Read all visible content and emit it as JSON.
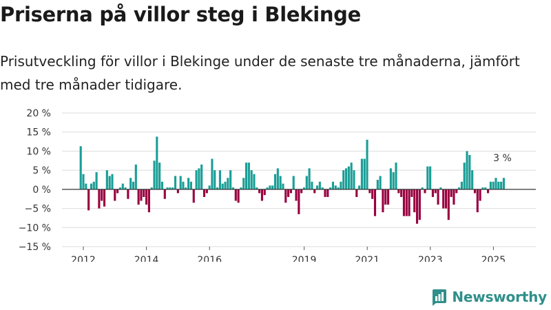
{
  "title": "Priserna på villor steg i Blekinge",
  "subtitle": "Prisutveckling för villor i Blekinge under de senaste tre månaderna, jämfört med tre månader tidigare.",
  "brand": "Newsworthy",
  "colors": {
    "positive": "#1a9e96",
    "negative": "#990040",
    "brand": "#2f8f8a"
  },
  "chart_data": {
    "type": "bar",
    "ylabel": "",
    "xlabel": "",
    "ylim": [
      -15,
      20
    ],
    "y_ticks": [
      20,
      15,
      10,
      5,
      0,
      -5,
      -10,
      -15
    ],
    "y_tick_labels": [
      "20 %",
      "15 %",
      "10 %",
      "5 %",
      "0 %",
      "−5 %",
      "−10 %",
      "−15 %"
    ],
    "x_start_year": 2011.917,
    "x_step": 0.0833,
    "x_ticks": [
      2012,
      2014,
      2016,
      2019,
      2021,
      2023,
      2025
    ],
    "x_tick_labels": [
      "2012",
      "2014",
      "2016",
      "2019",
      "2021",
      "2023",
      "2025"
    ],
    "last_value_label": "3 %",
    "values": [
      11.3,
      4,
      1.5,
      -5.5,
      1.5,
      2,
      4.5,
      -5,
      -3,
      -4.5,
      5,
      3.5,
      4,
      -3,
      -1,
      0.5,
      1.5,
      0.5,
      -2.5,
      3,
      2,
      6.5,
      -4,
      -3,
      -2,
      -4,
      -6,
      0.5,
      7.5,
      13.8,
      7,
      2,
      -2.5,
      0.5,
      0.5,
      0.5,
      3.5,
      -1,
      3.5,
      2,
      0.5,
      3,
      2,
      -3.5,
      5,
      5.5,
      6.5,
      -2,
      -1,
      1,
      8,
      5,
      0.5,
      5,
      1.5,
      2,
      3,
      5,
      0.5,
      -3,
      -3.5,
      0.5,
      3,
      7,
      7,
      5,
      4,
      0.5,
      -1,
      -3,
      -1.5,
      0.5,
      1,
      1,
      4,
      5.5,
      3.5,
      1.5,
      -3.5,
      -2,
      -1,
      3.5,
      -3,
      -6.5,
      -1,
      0.5,
      3.5,
      5.5,
      2,
      -1,
      1,
      2,
      0.5,
      -2,
      -2,
      0.5,
      2,
      1,
      0.5,
      2,
      5,
      5.5,
      6,
      7,
      5,
      -2,
      1,
      8,
      8,
      13,
      -1,
      -2.5,
      -7,
      2.5,
      3.5,
      -6,
      -4,
      -4,
      5.5,
      4.5,
      7,
      -1,
      -2,
      -7,
      -7,
      -7,
      -2,
      -6,
      -9,
      -8,
      0.5,
      -1,
      6,
      6,
      -2,
      -1,
      -4,
      0.5,
      -5,
      -5,
      -8,
      -2,
      -4,
      -1,
      0.5,
      2,
      7,
      10,
      9,
      5,
      -1,
      -6,
      -3,
      0.5,
      0.5,
      -1,
      2,
      2,
      3,
      2,
      2,
      3
    ]
  }
}
